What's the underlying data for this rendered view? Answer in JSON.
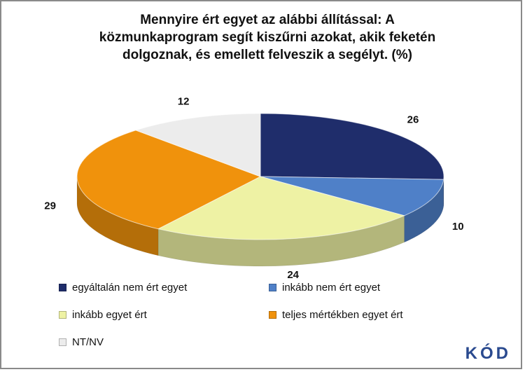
{
  "chart_data": {
    "type": "pie",
    "title": "Mennyire ért egyet az alábbi állítással: A közmunkaprogram segít kiszűrni azokat, akik feketén dolgoznak, és emellett felveszik a segélyt. (%)",
    "series": [
      {
        "name": "egyáltalán nem ért egyet",
        "color": "#1f2d6b",
        "values": [
          26
        ]
      },
      {
        "name": "inkább nem ért egyet",
        "color": "#4f80c8",
        "values": [
          10
        ]
      },
      {
        "name": "inkább egyet ért",
        "color": "#eef2a4",
        "values": [
          24
        ]
      },
      {
        "name": "teljes mértékben egyet ért",
        "color": "#f0920c",
        "values": [
          29
        ]
      },
      {
        "name": "NT/NV",
        "color": "#ececec",
        "values": [
          12
        ]
      }
    ],
    "legend": "bottom"
  },
  "logo": "KÓD"
}
